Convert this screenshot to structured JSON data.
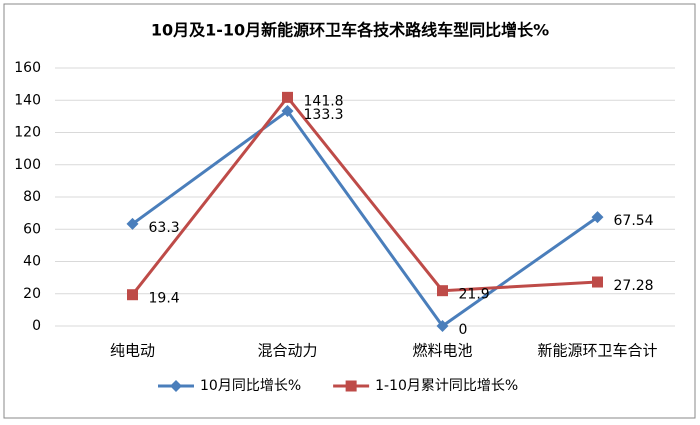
{
  "chart_data": {
    "type": "line",
    "title": "10月及1-10月新能源环卫车各技术路线车型同比增长%",
    "categories": [
      "纯电动",
      "混合动力",
      "燃料电池",
      "新能源环卫车合计"
    ],
    "series": [
      {
        "name": "10月同比增长%",
        "color": "#4a7ebb",
        "marker": "diamond",
        "values": [
          63.3,
          133.3,
          0,
          67.54
        ]
      },
      {
        "name": "1-10月累计同比增长%",
        "color": "#be4b48",
        "marker": "square",
        "values": [
          19.4,
          141.8,
          21.9,
          27.28
        ]
      }
    ],
    "ylim": [
      0,
      160
    ],
    "yticks": [
      0,
      20,
      40,
      60,
      80,
      100,
      120,
      140,
      160
    ],
    "grid": true,
    "legend": "bottom"
  }
}
